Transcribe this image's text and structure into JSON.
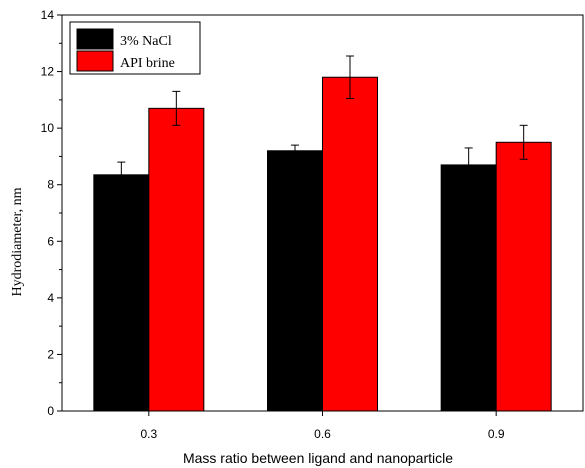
{
  "chart_data": {
    "type": "bar",
    "title": "",
    "xlabel": "Mass ratio between ligand and nanoparticle",
    "ylabel": "Hydrodiameter, nm",
    "categories": [
      "0.3",
      "0.6",
      "0.9"
    ],
    "ylim": [
      0,
      14
    ],
    "yticks": [
      "0",
      "2",
      "4",
      "6",
      "8",
      "10",
      "12",
      "14"
    ],
    "legend_position": "top-left",
    "series": [
      {
        "name": "3% NaCl",
        "color": "#000000",
        "values": [
          8.35,
          9.2,
          8.7
        ],
        "errors": [
          0.45,
          0.2,
          0.6
        ]
      },
      {
        "name": "API brine",
        "color": "#ff0000",
        "values": [
          10.7,
          11.8,
          9.5
        ],
        "errors": [
          0.6,
          0.75,
          0.6
        ]
      }
    ]
  }
}
